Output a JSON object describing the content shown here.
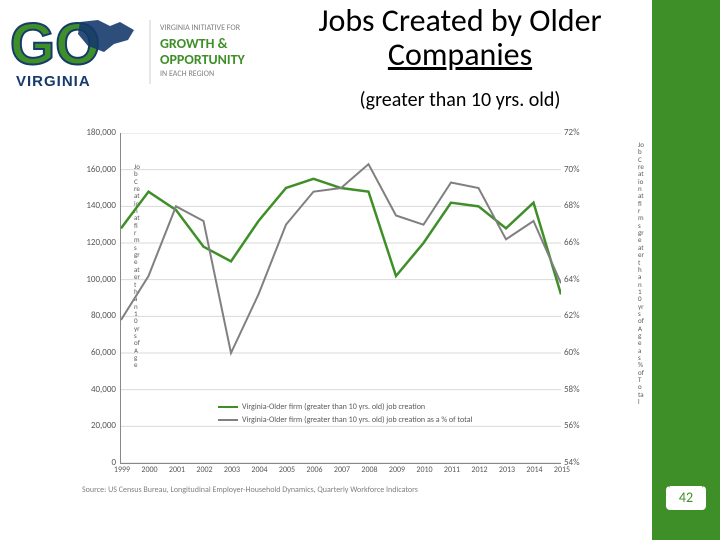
{
  "logo": {
    "go_text": "GO",
    "virginia": "VIRGINIA",
    "initiative_line1": "VIRGINIA INITIATIVE FOR",
    "initiative_line2": "GROWTH &",
    "initiative_line3": "OPPORTUNITY",
    "initiative_line4": "IN EACH REGION",
    "go_fill": "#3f8f29",
    "go_stroke": "#163a6b",
    "virginia_fill": "#163a6b",
    "tag_color": "#808080",
    "tag_green": "#3f8f29"
  },
  "title_line1": "Jobs Created by Older",
  "title_line2": "Companies",
  "subtitle": "(greater than 10 yrs. old)",
  "chart": {
    "type": "line-dual-axis",
    "background": "#ffffff",
    "grid_color": "#d9d9d9",
    "axis_color": "#888888",
    "tick_color": "#595959",
    "categories": [
      "1999",
      "2000",
      "2001",
      "2002",
      "2003",
      "2004",
      "2005",
      "2006",
      "2007",
      "2008",
      "2009",
      "2010",
      "2011",
      "2012",
      "2013",
      "2014",
      "2015"
    ],
    "series": [
      {
        "name": "Virginia-Older firm (greater than 10 yrs. old) job creation",
        "color": "#3f8f29",
        "axis": "left",
        "values": [
          128000,
          148000,
          138000,
          118000,
          110000,
          132000,
          150000,
          155000,
          150000,
          148000,
          102000,
          120000,
          142000,
          140000,
          128000,
          142000,
          92000
        ]
      },
      {
        "name": "Virginia-Older firm (greater than 10 yrs. old) job creation as a % of total",
        "color": "#808080",
        "axis": "right",
        "values": [
          61.8,
          64.2,
          68.0,
          67.2,
          60.0,
          63.2,
          67.0,
          68.8,
          69.0,
          70.3,
          67.5,
          67.0,
          69.3,
          69.0,
          66.2,
          67.2,
          63.8
        ]
      }
    ],
    "y_left": {
      "min": 0,
      "max": 180000,
      "step": 20000,
      "ticks": [
        "0",
        "20,000",
        "40,000",
        "60,000",
        "80,000",
        "100,000",
        "120,000",
        "140,000",
        "160,000",
        "180,000"
      ],
      "label": "Job Creation at firms greater than 10 yrs of Age"
    },
    "y_right": {
      "min": 54,
      "max": 72,
      "step": 2,
      "ticks": [
        "54%",
        "56%",
        "58%",
        "60%",
        "62%",
        "64%",
        "66%",
        "68%",
        "70%",
        "72%"
      ],
      "label": "Job Creation at firms greater than 10 yrs of Age as % of Total Job Created"
    },
    "tick_fontsize": 9,
    "legend_fontsize": 8
  },
  "y_left_label": "Job Creation at firms greater than 10 yrs of Age",
  "y_right_label": "Job Creation at firms greater than 10 yrs of Age as % of Total",
  "source": "Source: US Census Bureau, Longitudinal Employer-Household Dynamics, Quarterly Workforce Indicators",
  "page_number": "42",
  "colors": {
    "green_bar": "#3f8f29",
    "page_num": "#3f8f29"
  }
}
